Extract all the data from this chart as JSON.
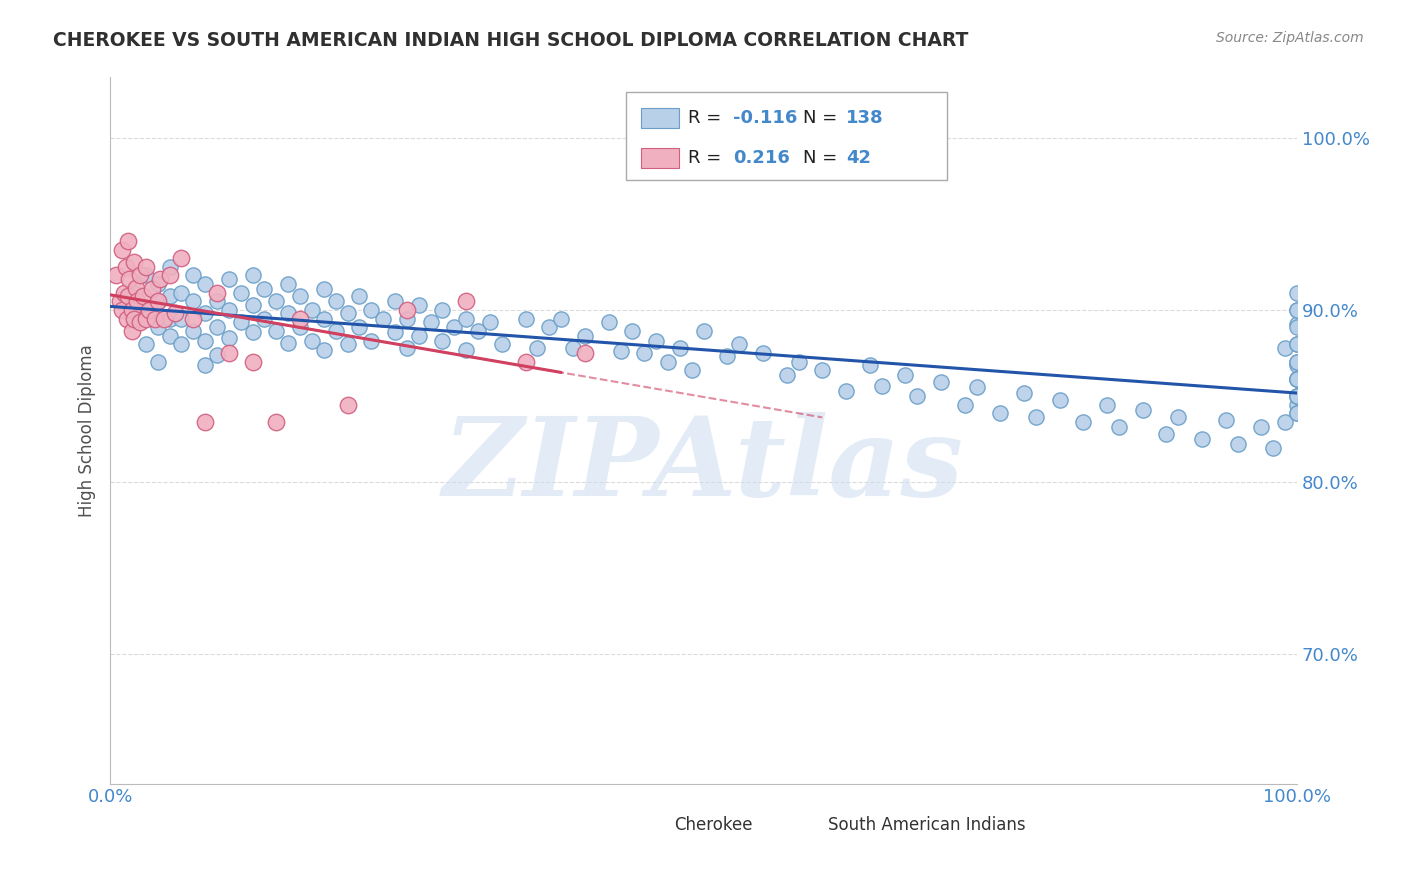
{
  "title": "CHEROKEE VS SOUTH AMERICAN INDIAN HIGH SCHOOL DIPLOMA CORRELATION CHART",
  "source": "Source: ZipAtlas.com",
  "ylabel": "High School Diploma",
  "cherokee_R": -0.116,
  "cherokee_N": 138,
  "sai_R": 0.216,
  "sai_N": 42,
  "cherokee_color": "#b8d0e8",
  "cherokee_edge": "#6a9ec8",
  "cherokee_line": "#2255aa",
  "sai_color": "#f0b0c0",
  "sai_edge": "#d06080",
  "sai_line": "#d04060",
  "legend_fill": "#ffffff",
  "legend_edge": "#aaaaaa",
  "watermark": "ZIPAtlas",
  "background": "#ffffff",
  "grid_color": "#cccccc",
  "title_color": "#303030",
  "axis_label_color": "#4488cc",
  "xlim": [
    0.0,
    1.0
  ],
  "ylim": [
    0.625,
    1.035
  ],
  "ytick_positions": [
    0.7,
    0.8,
    0.9,
    1.0
  ],
  "ytick_labels": [
    "70.0%",
    "80.0%",
    "90.0%",
    "100.0%"
  ],
  "cherokee_x": [
    0.02,
    0.02,
    0.03,
    0.03,
    0.03,
    0.04,
    0.04,
    0.04,
    0.04,
    0.05,
    0.05,
    0.05,
    0.05,
    0.06,
    0.06,
    0.06,
    0.07,
    0.07,
    0.07,
    0.08,
    0.08,
    0.08,
    0.08,
    0.09,
    0.09,
    0.09,
    0.1,
    0.1,
    0.1,
    0.11,
    0.11,
    0.12,
    0.12,
    0.12,
    0.13,
    0.13,
    0.14,
    0.14,
    0.15,
    0.15,
    0.15,
    0.16,
    0.16,
    0.17,
    0.17,
    0.18,
    0.18,
    0.18,
    0.19,
    0.19,
    0.2,
    0.2,
    0.21,
    0.21,
    0.22,
    0.22,
    0.23,
    0.24,
    0.24,
    0.25,
    0.25,
    0.26,
    0.26,
    0.27,
    0.28,
    0.28,
    0.29,
    0.3,
    0.3,
    0.31,
    0.32,
    0.33,
    0.35,
    0.36,
    0.37,
    0.38,
    0.39,
    0.4,
    0.42,
    0.43,
    0.44,
    0.45,
    0.46,
    0.47,
    0.48,
    0.49,
    0.5,
    0.52,
    0.53,
    0.55,
    0.57,
    0.58,
    0.6,
    0.62,
    0.64,
    0.65,
    0.67,
    0.68,
    0.7,
    0.72,
    0.73,
    0.75,
    0.77,
    0.78,
    0.8,
    0.82,
    0.84,
    0.85,
    0.87,
    0.89,
    0.9,
    0.92,
    0.94,
    0.95,
    0.97,
    0.98,
    0.99,
    0.99,
    1.0,
    1.0,
    1.0,
    1.0,
    1.0,
    1.0,
    1.0,
    1.0,
    1.0,
    1.0,
    1.0,
    1.0,
    1.0,
    1.0,
    1.0,
    1.0,
    1.0,
    1.0,
    1.0,
    1.0
  ],
  "cherokee_y": [
    0.91,
    0.895,
    0.92,
    0.9,
    0.88,
    0.915,
    0.905,
    0.89,
    0.87,
    0.925,
    0.908,
    0.895,
    0.885,
    0.91,
    0.895,
    0.88,
    0.92,
    0.905,
    0.888,
    0.915,
    0.898,
    0.882,
    0.868,
    0.905,
    0.89,
    0.874,
    0.918,
    0.9,
    0.884,
    0.91,
    0.893,
    0.92,
    0.903,
    0.887,
    0.912,
    0.895,
    0.905,
    0.888,
    0.915,
    0.898,
    0.881,
    0.908,
    0.89,
    0.9,
    0.882,
    0.912,
    0.895,
    0.877,
    0.905,
    0.888,
    0.898,
    0.88,
    0.908,
    0.89,
    0.9,
    0.882,
    0.895,
    0.905,
    0.887,
    0.895,
    0.878,
    0.903,
    0.885,
    0.893,
    0.9,
    0.882,
    0.89,
    0.895,
    0.877,
    0.888,
    0.893,
    0.88,
    0.895,
    0.878,
    0.89,
    0.895,
    0.878,
    0.885,
    0.893,
    0.876,
    0.888,
    0.875,
    0.882,
    0.87,
    0.878,
    0.865,
    0.888,
    0.873,
    0.88,
    0.875,
    0.862,
    0.87,
    0.865,
    0.853,
    0.868,
    0.856,
    0.862,
    0.85,
    0.858,
    0.845,
    0.855,
    0.84,
    0.852,
    0.838,
    0.848,
    0.835,
    0.845,
    0.832,
    0.842,
    0.828,
    0.838,
    0.825,
    0.836,
    0.822,
    0.832,
    0.82,
    0.835,
    0.878,
    0.86,
    0.845,
    0.892,
    0.868,
    0.85,
    0.91,
    0.89,
    0.87,
    0.85,
    0.88,
    0.86,
    0.84,
    0.9,
    0.86,
    0.88,
    0.9,
    0.86,
    0.84,
    0.87,
    0.85
  ],
  "sai_x": [
    0.005,
    0.008,
    0.01,
    0.01,
    0.012,
    0.013,
    0.014,
    0.015,
    0.015,
    0.016,
    0.018,
    0.018,
    0.02,
    0.02,
    0.022,
    0.023,
    0.025,
    0.025,
    0.028,
    0.03,
    0.03,
    0.033,
    0.035,
    0.038,
    0.04,
    0.042,
    0.045,
    0.05,
    0.055,
    0.06,
    0.07,
    0.08,
    0.09,
    0.1,
    0.12,
    0.14,
    0.16,
    0.2,
    0.25,
    0.3,
    0.35,
    0.4
  ],
  "sai_y": [
    0.92,
    0.905,
    0.935,
    0.9,
    0.91,
    0.925,
    0.895,
    0.94,
    0.908,
    0.918,
    0.9,
    0.888,
    0.928,
    0.895,
    0.913,
    0.905,
    0.92,
    0.893,
    0.908,
    0.895,
    0.925,
    0.9,
    0.912,
    0.895,
    0.905,
    0.918,
    0.895,
    0.92,
    0.898,
    0.93,
    0.895,
    0.835,
    0.91,
    0.875,
    0.87,
    0.835,
    0.895,
    0.845,
    0.9,
    0.905,
    0.87,
    0.875
  ]
}
